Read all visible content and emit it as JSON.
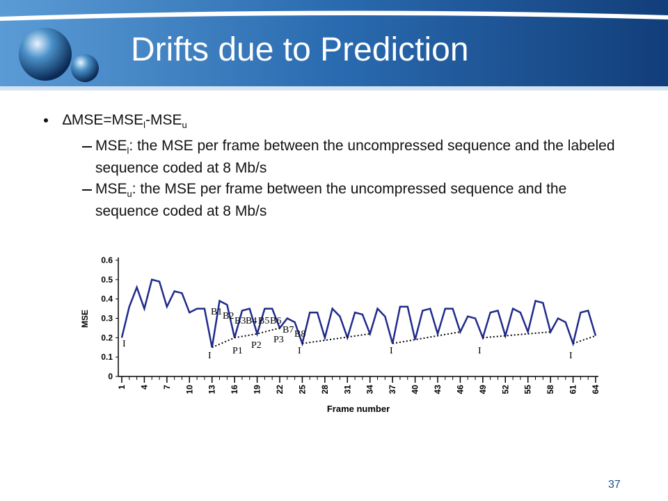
{
  "slide": {
    "title": "Drifts due to Prediction",
    "bullet": [
      "∆MSE=MSE",
      "l",
      "-MSE",
      "u"
    ],
    "sub_bullets": [
      [
        "MSE",
        "l",
        ": the MSE per frame between the uncompressed sequence and the labeled sequence coded at 8 Mb/s"
      ],
      [
        "MSE",
        "u",
        ": the MSE per frame between the uncompressed sequence and the sequence coded at 8 Mb/s"
      ]
    ],
    "page_number": "37"
  },
  "chart_data": {
    "type": "line",
    "y_label": "MSE",
    "x_label": "Frame number",
    "x": [
      1,
      2,
      3,
      4,
      5,
      6,
      7,
      8,
      9,
      10,
      11,
      12,
      13,
      14,
      15,
      16,
      17,
      18,
      19,
      20,
      21,
      22,
      23,
      24,
      25,
      26,
      27,
      28,
      29,
      30,
      31,
      32,
      33,
      34,
      35,
      36,
      37,
      38,
      39,
      40,
      41,
      42,
      43,
      44,
      45,
      46,
      47,
      48,
      49,
      50,
      51,
      52,
      53,
      54,
      55,
      56,
      57,
      58,
      59,
      60,
      61,
      62,
      63,
      64
    ],
    "xlim": [
      1,
      64
    ],
    "xticks": [
      1,
      4,
      7,
      10,
      13,
      16,
      19,
      22,
      25,
      28,
      31,
      34,
      37,
      40,
      43,
      46,
      49,
      52,
      55,
      58,
      61,
      64
    ],
    "ylim": [
      0,
      0.6
    ],
    "yticks": [
      0,
      0.1,
      0.2,
      0.3,
      0.4,
      0.5,
      0.6
    ],
    "series": [
      {
        "color": "#1f2a8a",
        "style": "solid",
        "values": [
          0.2,
          0.36,
          0.46,
          0.35,
          0.5,
          0.49,
          0.36,
          0.44,
          0.43,
          0.33,
          0.35,
          0.35,
          0.15,
          0.39,
          0.37,
          0.2,
          0.34,
          0.35,
          0.22,
          0.35,
          0.35,
          0.25,
          0.3,
          0.28,
          0.17,
          0.33,
          0.33,
          0.2,
          0.35,
          0.31,
          0.2,
          0.33,
          0.32,
          0.22,
          0.35,
          0.31,
          0.17,
          0.36,
          0.36,
          0.19,
          0.34,
          0.35,
          0.22,
          0.35,
          0.35,
          0.23,
          0.31,
          0.3,
          0.2,
          0.33,
          0.34,
          0.21,
          0.35,
          0.33,
          0.23,
          0.39,
          0.38,
          0.23,
          0.3,
          0.28,
          0.17,
          0.33,
          0.34,
          0.21
        ]
      },
      {
        "color": "#000000",
        "style": "dotted",
        "x": [
          13,
          16,
          19,
          22,
          null,
          25,
          34,
          null,
          37,
          46,
          null,
          49,
          58,
          null,
          61,
          64
        ],
        "values": [
          0.15,
          0.2,
          0.22,
          0.25,
          null,
          0.17,
          0.22,
          null,
          0.17,
          0.23,
          null,
          0.2,
          0.23,
          null,
          0.17,
          0.21
        ]
      }
    ],
    "annotations": [
      "B1",
      "B2",
      "B3",
      "B4",
      "B5",
      "B6",
      "B7",
      "B8",
      "P1",
      "P2",
      "P3",
      "I",
      "I",
      "I",
      "I",
      "I",
      "I"
    ]
  }
}
